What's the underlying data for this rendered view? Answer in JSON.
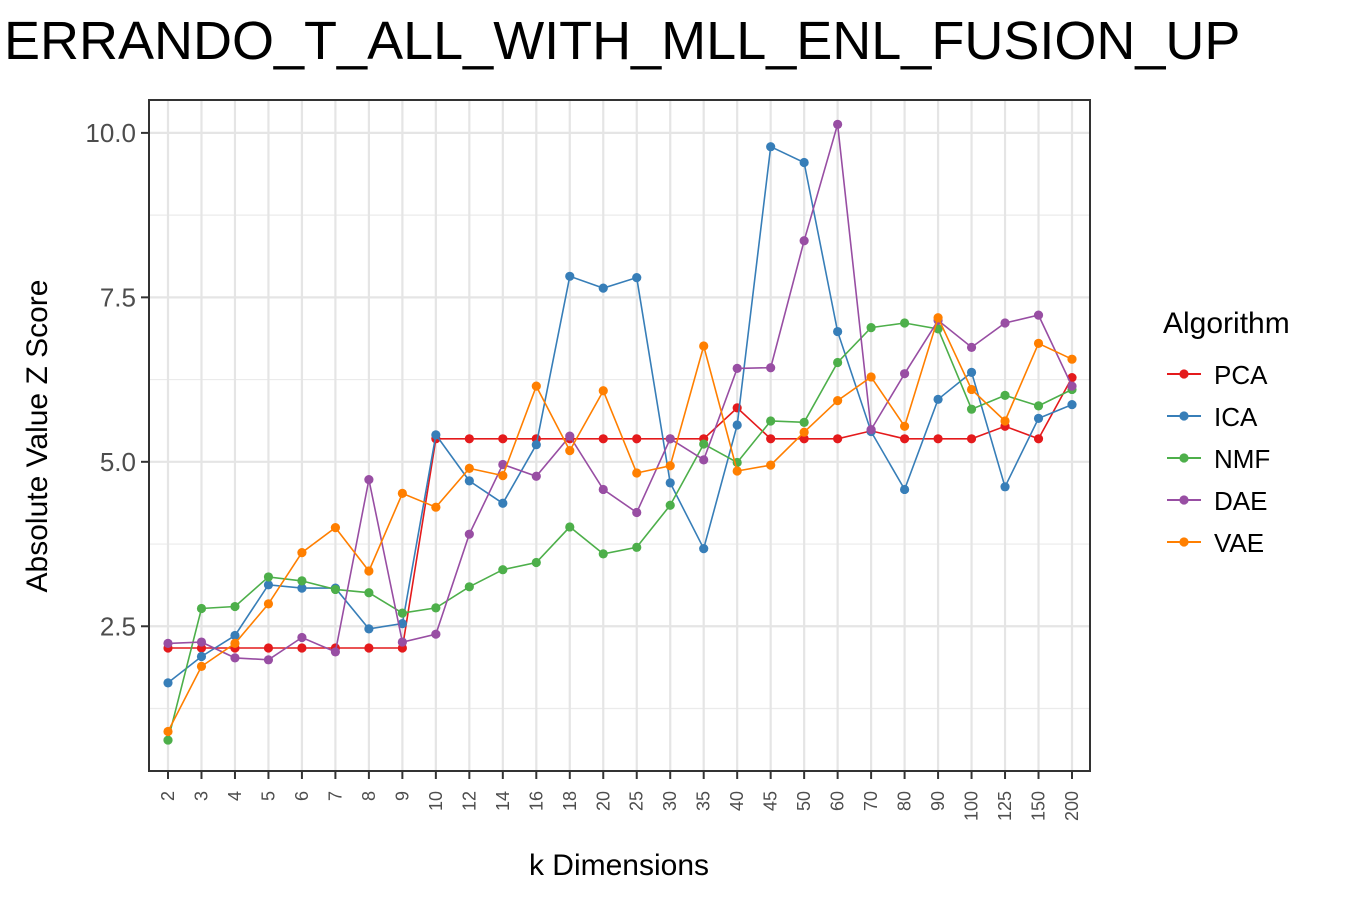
{
  "chart_data": {
    "type": "line",
    "title": "ERRANDO_T_ALL_WITH_MLL_ENL_FUSION_UP",
    "xlabel": "k Dimensions",
    "ylabel": "Absolute Value Z Score",
    "categories": [
      "2",
      "3",
      "4",
      "5",
      "6",
      "7",
      "8",
      "9",
      "10",
      "12",
      "14",
      "16",
      "18",
      "20",
      "25",
      "30",
      "35",
      "40",
      "45",
      "50",
      "60",
      "70",
      "80",
      "90",
      "100",
      "125",
      "150",
      "200"
    ],
    "ylim": [
      0.3,
      10.5
    ],
    "yticks": [
      2.5,
      5.0,
      7.5,
      10.0
    ],
    "ytick_labels": [
      "2.5",
      "5.0",
      "7.5",
      "10.0"
    ],
    "grid": true,
    "legend": {
      "title": "Algorithm",
      "position": "right"
    },
    "series": [
      {
        "name": "PCA",
        "color": "#E41A1C",
        "values": [
          2.17,
          2.17,
          2.17,
          2.17,
          2.17,
          2.17,
          2.17,
          2.17,
          5.35,
          5.35,
          5.35,
          5.35,
          5.35,
          5.35,
          5.35,
          5.35,
          5.35,
          5.82,
          5.35,
          5.35,
          5.35,
          5.47,
          5.35,
          5.35,
          5.35,
          5.54,
          5.35,
          6.28
        ]
      },
      {
        "name": "ICA",
        "color": "#377EB8",
        "values": [
          1.64,
          2.04,
          2.36,
          3.13,
          3.08,
          3.08,
          2.46,
          2.54,
          5.41,
          4.71,
          4.37,
          5.26,
          7.82,
          7.64,
          7.8,
          4.68,
          3.68,
          5.56,
          9.79,
          9.55,
          6.98,
          5.46,
          4.58,
          5.95,
          6.36,
          4.62,
          5.66,
          5.87
        ]
      },
      {
        "name": "NMF",
        "color": "#4DAF4A",
        "values": [
          0.77,
          2.77,
          2.8,
          3.25,
          3.19,
          3.06,
          3.01,
          2.7,
          2.78,
          3.1,
          3.36,
          3.47,
          4.01,
          3.6,
          3.7,
          4.34,
          5.27,
          4.99,
          5.62,
          5.6,
          6.51,
          7.04,
          7.11,
          7.02,
          5.8,
          6.01,
          5.85,
          6.1
        ]
      },
      {
        "name": "DAE",
        "color": "#984EA3",
        "values": [
          2.24,
          2.26,
          2.02,
          1.99,
          2.33,
          2.11,
          4.73,
          2.26,
          2.38,
          3.9,
          4.96,
          4.78,
          5.39,
          4.58,
          4.23,
          5.35,
          5.03,
          6.42,
          6.43,
          8.36,
          10.13,
          5.49,
          6.34,
          7.15,
          6.74,
          7.11,
          7.23,
          6.15
        ]
      },
      {
        "name": "VAE",
        "color": "#FF7F00",
        "values": [
          0.9,
          1.89,
          2.24,
          2.84,
          3.62,
          4.0,
          3.34,
          4.52,
          4.31,
          4.9,
          4.79,
          6.15,
          5.17,
          6.08,
          4.83,
          4.94,
          6.76,
          4.86,
          4.95,
          5.45,
          5.93,
          6.29,
          5.54,
          7.19,
          6.1,
          5.62,
          6.8,
          6.56
        ]
      }
    ]
  }
}
